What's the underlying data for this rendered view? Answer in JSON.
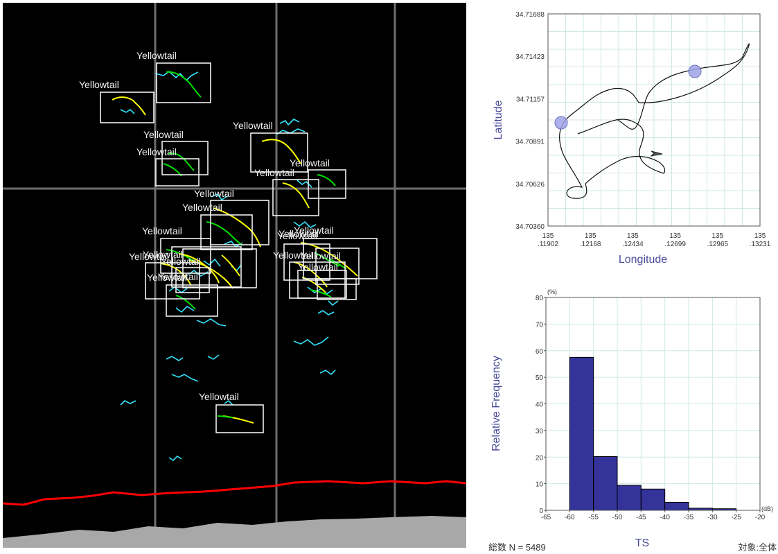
{
  "echogram": {
    "fish_label": "Yellowtail",
    "target_count": 26,
    "colors": {
      "background": "#000000",
      "grid": "#6e6e6e",
      "track_yellow": "#ffff00",
      "track_green": "#00e000",
      "track_cyan": "#33e6ff",
      "bottom_line": "#ff0000",
      "seabed": "#a8a8a8",
      "label": "#f0f0f0",
      "box": "#ffffff"
    }
  },
  "map": {
    "xlabel": "Longitude",
    "ylabel": "Latitude",
    "x_ticks": [
      [
        "135",
        ".11902"
      ],
      [
        "135",
        ".12168"
      ],
      [
        "135",
        ".12434"
      ],
      [
        "135",
        ".12699"
      ],
      [
        "135",
        ".12965"
      ],
      [
        "135",
        ".13231"
      ]
    ],
    "y_ticks": [
      "34.71688",
      "34.71423",
      "34.71157",
      "34.70891",
      "34.70626",
      "34.70360"
    ],
    "colors": {
      "label": "#4a4a9a",
      "grid": "#cfe8e4",
      "track": "#111111",
      "marker": "#9fa3e6"
    }
  },
  "histogram": {
    "y_unit": "(%)",
    "x_unit": "(dB)",
    "xlabel": "TS",
    "ylabel": "Relative Frequency",
    "total_label": "総数 N = 5489",
    "target_label": "対象:全体",
    "colors": {
      "bar": "#333399",
      "grid": "#cfe8e4",
      "label": "#4a4a9a"
    }
  },
  "chart_data": {
    "type": "bar",
    "title": "",
    "xlabel": "TS",
    "ylabel": "Relative Frequency",
    "x_unit": "dB",
    "y_unit": "%",
    "bins": [
      [
        -60,
        -55
      ],
      [
        -55,
        -50
      ],
      [
        -50,
        -45
      ],
      [
        -45,
        -40
      ],
      [
        -40,
        -35
      ],
      [
        -35,
        -30
      ],
      [
        -30,
        -25
      ]
    ],
    "values": [
      57.5,
      20.2,
      9.4,
      8.0,
      3.0,
      0.8,
      0.6
    ],
    "x_ticks": [
      -65,
      -60,
      -55,
      -50,
      -45,
      -40,
      -35,
      -30,
      -25,
      -20
    ],
    "y_ticks": [
      0,
      10,
      20,
      30,
      40,
      50,
      60,
      70,
      80
    ],
    "xlim": [
      -65,
      -20
    ],
    "ylim": [
      0,
      80
    ],
    "grid": true
  }
}
